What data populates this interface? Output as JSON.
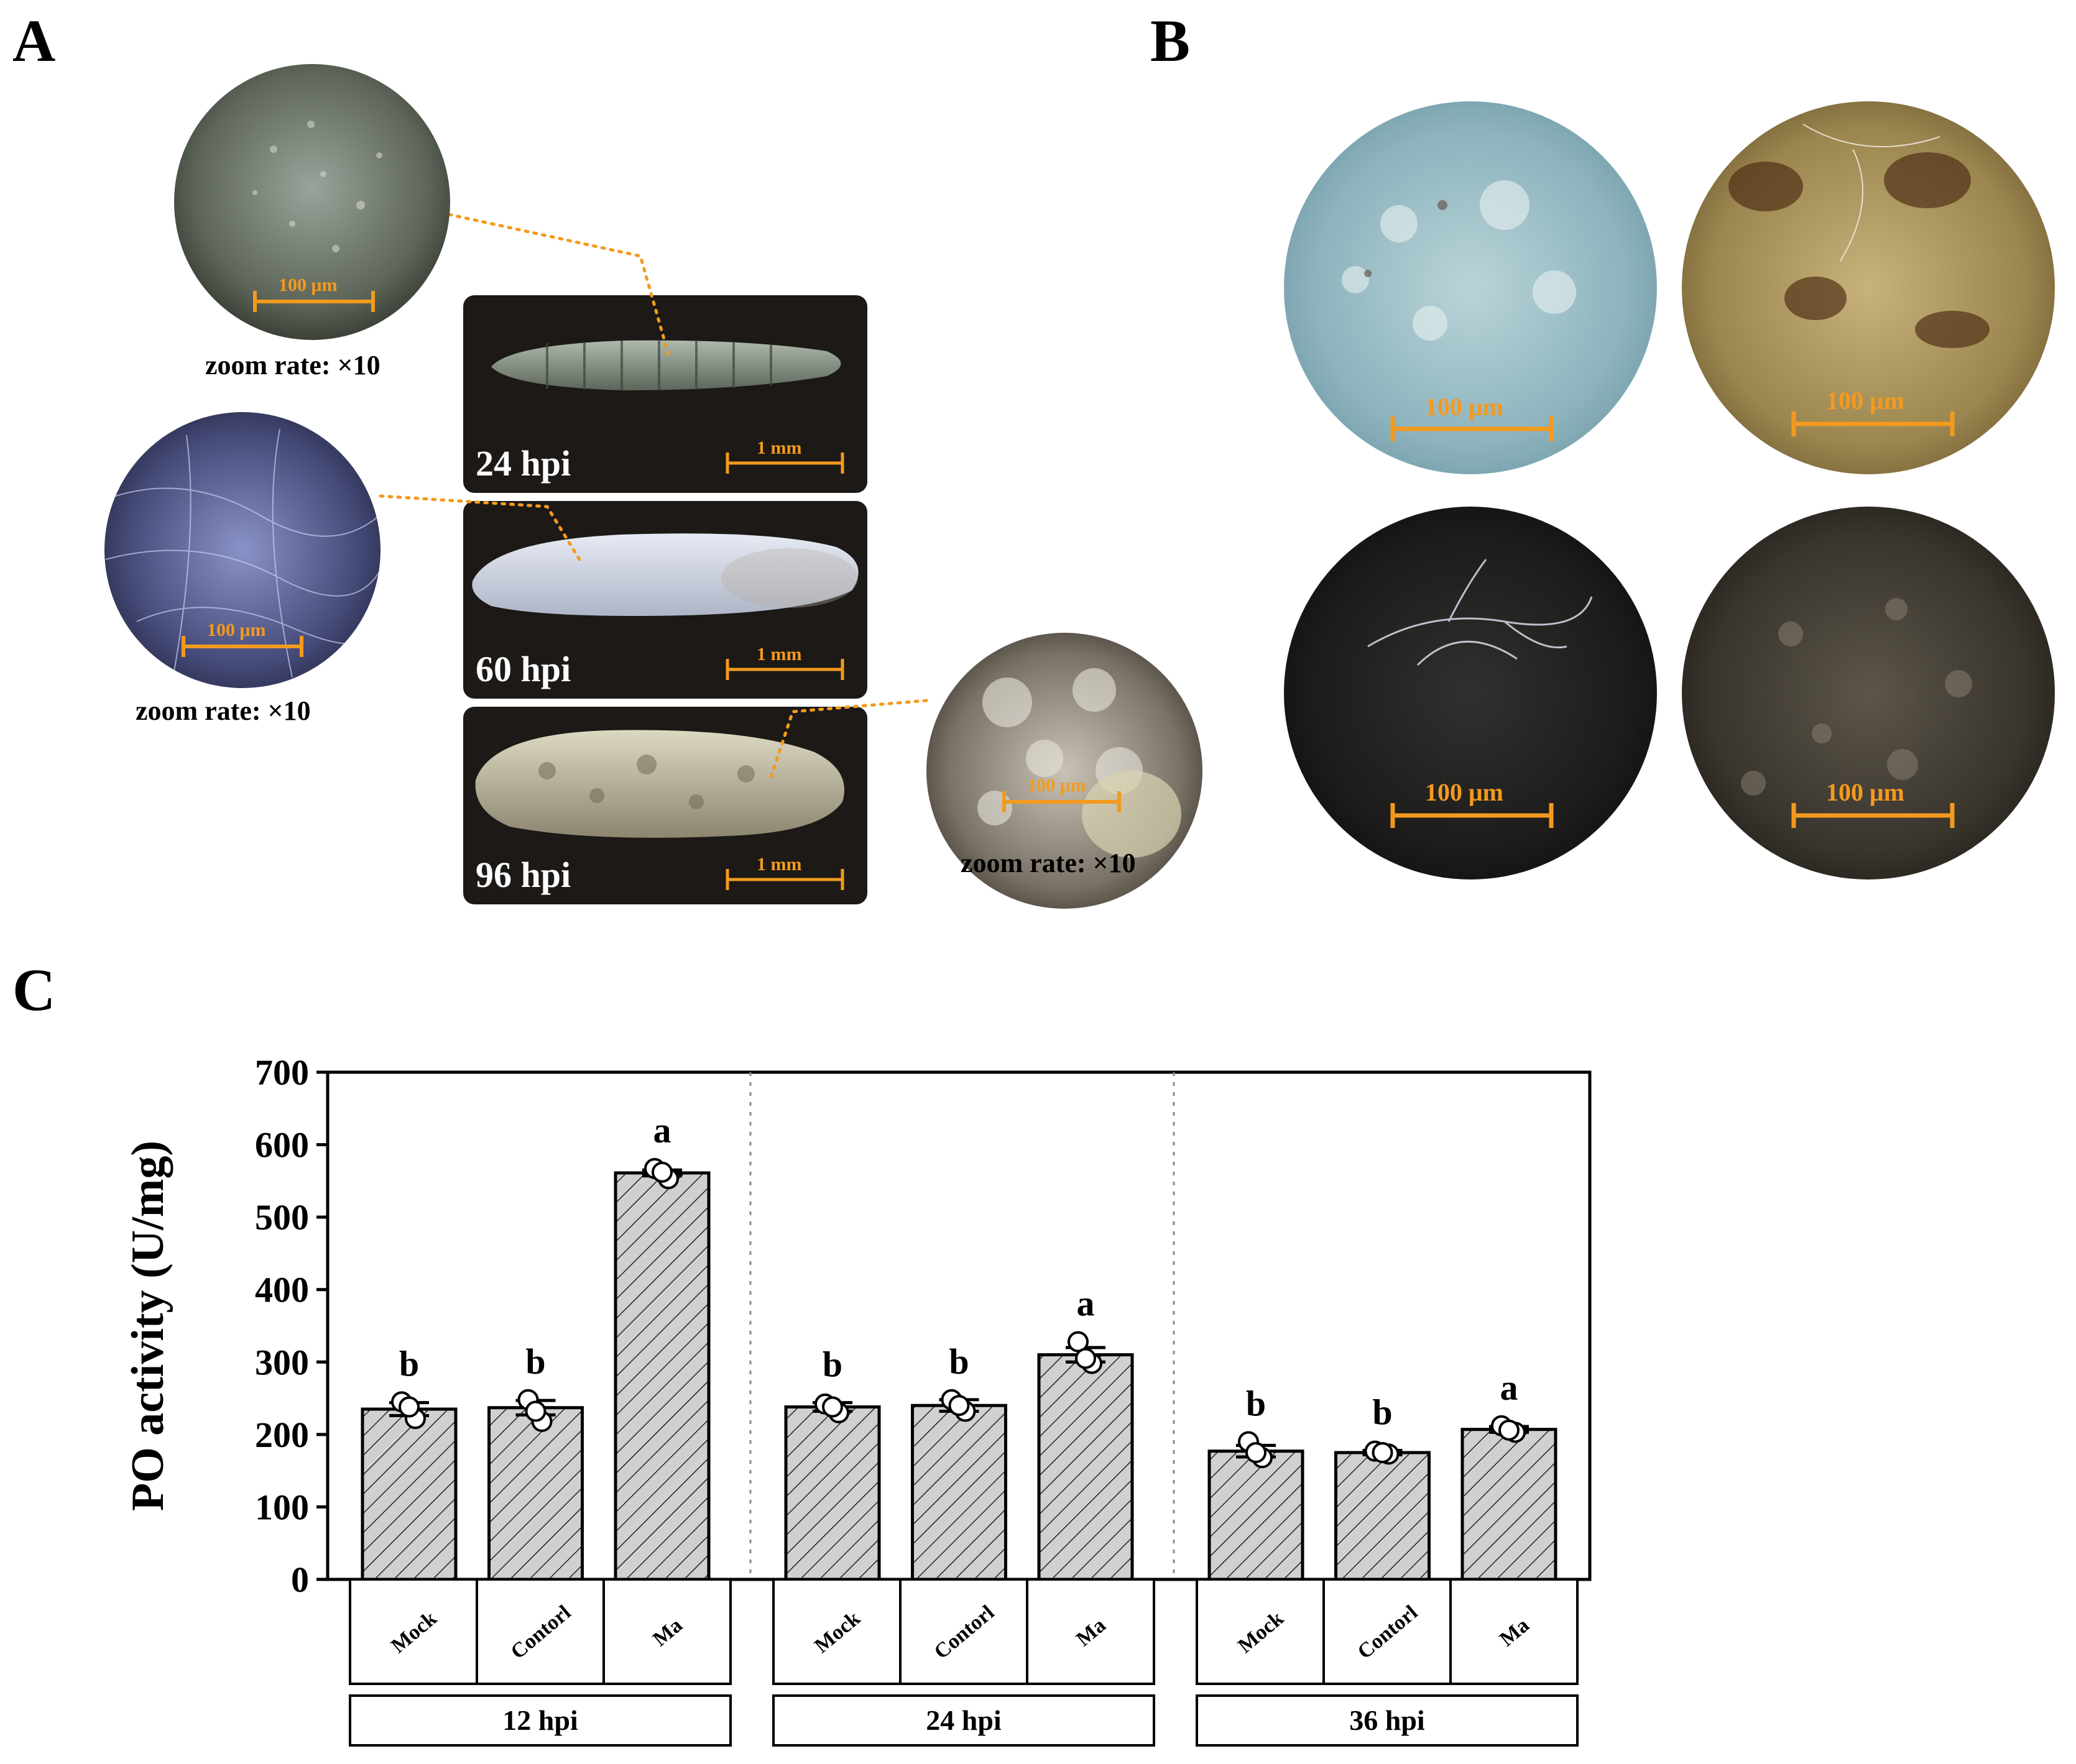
{
  "panels": {
    "a_letter": "A",
    "b_letter": "B",
    "c_letter": "C"
  },
  "panel_a": {
    "photos": [
      {
        "time": "24 hpi",
        "scale": "1 mm"
      },
      {
        "time": "60 hpi",
        "scale": "1 mm"
      },
      {
        "time": "96 hpi",
        "scale": "1 mm"
      }
    ],
    "zooms": [
      {
        "zoom_text": "zoom rate: ×10",
        "scale": "100 μm"
      },
      {
        "zoom_text": "zoom rate: ×10",
        "scale": "100 μm"
      },
      {
        "zoom_text": "zoom rate: ×10",
        "scale": "100 μm"
      }
    ]
  },
  "panel_b": {
    "scales": [
      "100 μm",
      "100 μm",
      "100 μm",
      "100 μm"
    ]
  },
  "colors": {
    "scale_orange": "#f39a1e",
    "bar_fill": "#d0d0d0",
    "photo_bg": "#1c1916"
  },
  "chart_data": {
    "type": "bar",
    "ylabel": "PO activity (U/mg)",
    "ylim": [
      0,
      700
    ],
    "yticks": [
      "0",
      "100",
      "200",
      "300",
      "400",
      "500",
      "600",
      "700"
    ],
    "groups": [
      {
        "label": "12 hpi",
        "categories": [
          "Mock",
          "Contorl",
          "Ma"
        ],
        "values": [
          235,
          237,
          561
        ],
        "errors": [
          9,
          10,
          4
        ],
        "letters": [
          "b",
          "b",
          "a"
        ],
        "points": [
          [
            245,
            222,
            238
          ],
          [
            248,
            218,
            232
          ],
          [
            567,
            553,
            562
          ]
        ]
      },
      {
        "label": "24 hpi",
        "categories": [
          "Mock",
          "Contorl",
          "Ma"
        ],
        "values": [
          238,
          240,
          310
        ],
        "errors": [
          6,
          8,
          10
        ],
        "letters": [
          "b",
          "b",
          "a"
        ],
        "points": [
          [
            242,
            230,
            238
          ],
          [
            248,
            232,
            240
          ],
          [
            328,
            298,
            305
          ]
        ]
      },
      {
        "label": "36 hpi",
        "categories": [
          "Mock",
          "Contorl",
          "Ma"
        ],
        "values": [
          177,
          175,
          207
        ],
        "errors": [
          8,
          3,
          4
        ],
        "letters": [
          "b",
          "b",
          "a"
        ],
        "points": [
          [
            190,
            168,
            175
          ],
          [
            177,
            173,
            175
          ],
          [
            212,
            203,
            206
          ]
        ]
      }
    ],
    "grid": false
  }
}
